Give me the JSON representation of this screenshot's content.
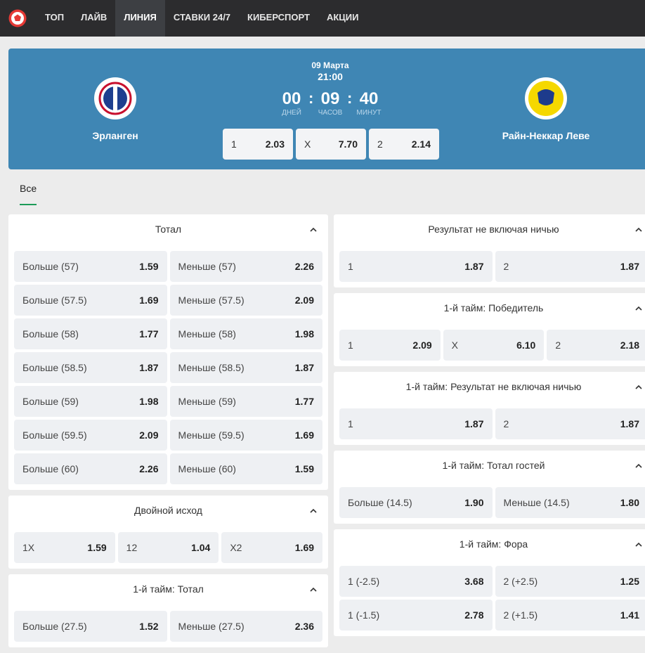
{
  "nav": {
    "items": [
      "ТОП",
      "ЛАЙВ",
      "ЛИНИЯ",
      "СТАВКИ 24/7",
      "КИБЕРСПОРТ",
      "АКЦИИ"
    ],
    "active": 2
  },
  "match": {
    "date": "09 Марта",
    "time": "21:00",
    "countdown": {
      "units": [
        {
          "value": "00",
          "label": "ДНЕЙ"
        },
        {
          "value": "09",
          "label": "ЧАСОВ"
        },
        {
          "value": "40",
          "label": "МИНУТ"
        }
      ],
      "separator": ":"
    },
    "team1": "Эрланген",
    "team2": "Райн-Неккар Леве",
    "odds": [
      {
        "label": "1",
        "value": "2.03"
      },
      {
        "label": "X",
        "value": "7.70"
      },
      {
        "label": "2",
        "value": "2.14"
      }
    ]
  },
  "tabs": [
    "Все"
  ],
  "markets": {
    "left": [
      {
        "title": "Тотал",
        "rows": [
          [
            {
              "label": "Больше (57)",
              "odds": "1.59"
            },
            {
              "label": "Меньше (57)",
              "odds": "2.26"
            }
          ],
          [
            {
              "label": "Больше (57.5)",
              "odds": "1.69"
            },
            {
              "label": "Меньше (57.5)",
              "odds": "2.09"
            }
          ],
          [
            {
              "label": "Больше (58)",
              "odds": "1.77"
            },
            {
              "label": "Меньше (58)",
              "odds": "1.98"
            }
          ],
          [
            {
              "label": "Больше (58.5)",
              "odds": "1.87"
            },
            {
              "label": "Меньше (58.5)",
              "odds": "1.87"
            }
          ],
          [
            {
              "label": "Больше (59)",
              "odds": "1.98"
            },
            {
              "label": "Меньше (59)",
              "odds": "1.77"
            }
          ],
          [
            {
              "label": "Больше (59.5)",
              "odds": "2.09"
            },
            {
              "label": "Меньше (59.5)",
              "odds": "1.69"
            }
          ],
          [
            {
              "label": "Больше (60)",
              "odds": "2.26"
            },
            {
              "label": "Меньше (60)",
              "odds": "1.59"
            }
          ]
        ]
      },
      {
        "title": "Двойной исход",
        "rows": [
          [
            {
              "label": "1X",
              "odds": "1.59"
            },
            {
              "label": "12",
              "odds": "1.04"
            },
            {
              "label": "X2",
              "odds": "1.69"
            }
          ]
        ]
      },
      {
        "title": "1-й тайм: Тотал",
        "rows": [
          [
            {
              "label": "Больше (27.5)",
              "odds": "1.52"
            },
            {
              "label": "Меньше (27.5)",
              "odds": "2.36"
            }
          ]
        ]
      }
    ],
    "right": [
      {
        "title": "Результат не включая ничью",
        "rows": [
          [
            {
              "label": "1",
              "odds": "1.87"
            },
            {
              "label": "2",
              "odds": "1.87"
            }
          ]
        ]
      },
      {
        "title": "1-й тайм: Победитель",
        "rows": [
          [
            {
              "label": "1",
              "odds": "2.09"
            },
            {
              "label": "X",
              "odds": "6.10"
            },
            {
              "label": "2",
              "odds": "2.18"
            }
          ]
        ]
      },
      {
        "title": "1-й тайм: Результат не включая ничью",
        "rows": [
          [
            {
              "label": "1",
              "odds": "1.87"
            },
            {
              "label": "2",
              "odds": "1.87"
            }
          ]
        ]
      },
      {
        "title": "1-й тайм: Тотал гостей",
        "rows": [
          [
            {
              "label": "Больше (14.5)",
              "odds": "1.90"
            },
            {
              "label": "Меньше (14.5)",
              "odds": "1.80"
            }
          ]
        ]
      },
      {
        "title": "1-й тайм: Фора",
        "rows": [
          [
            {
              "label": "1 (-2.5)",
              "odds": "3.68"
            },
            {
              "label": "2 (+2.5)",
              "odds": "1.25"
            }
          ],
          [
            {
              "label": "1 (-1.5)",
              "odds": "2.78"
            },
            {
              "label": "2 (+1.5)",
              "odds": "1.41"
            }
          ]
        ]
      }
    ]
  }
}
